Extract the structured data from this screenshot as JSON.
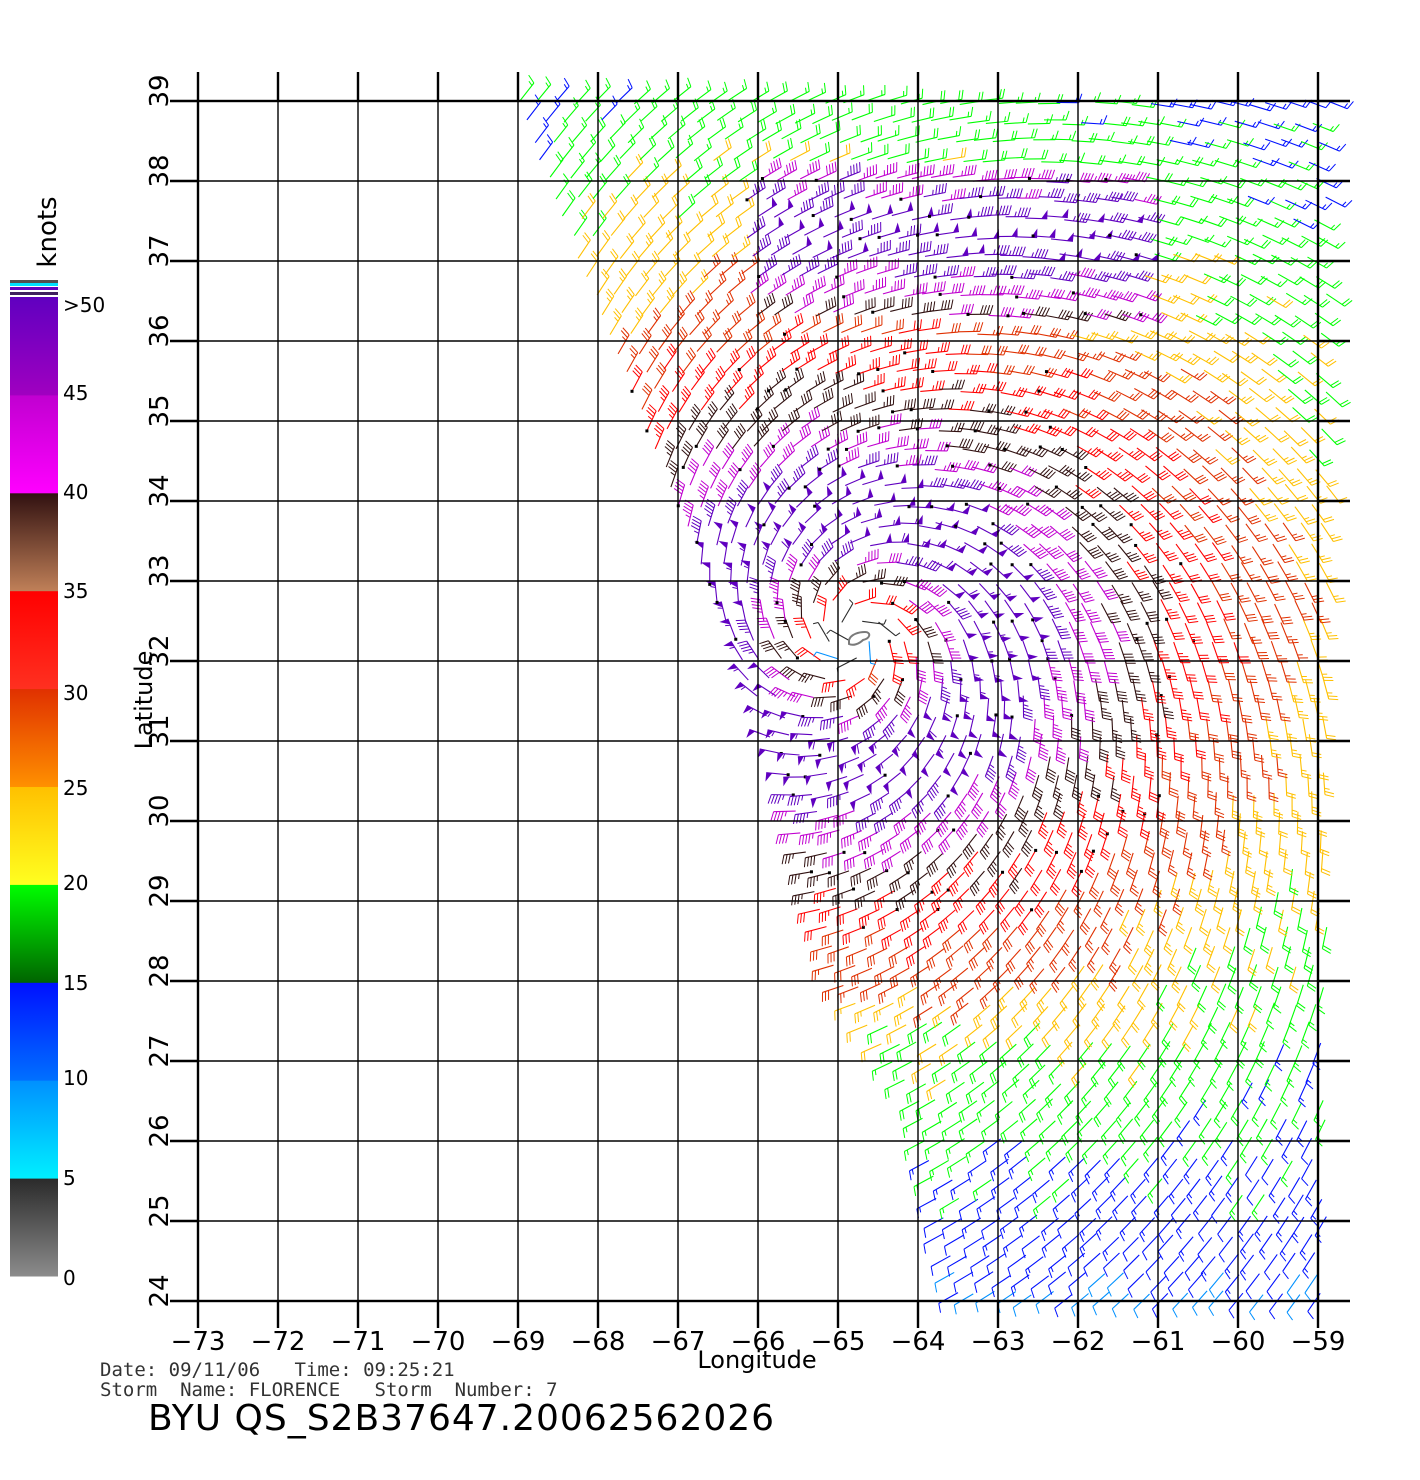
{
  "colorbar": {
    "unit_label": "knots",
    "tick_labels": [
      ">50",
      "45",
      "40",
      "35",
      "30",
      "25",
      "20",
      "15",
      "10",
      "5",
      "0"
    ],
    "segments": [
      {
        "from": 0,
        "to": 5,
        "colors": [
          "#8c8c8c",
          "#2a2a2a"
        ]
      },
      {
        "from": 5,
        "to": 10,
        "colors": [
          "#00f0ff",
          "#0090ff"
        ]
      },
      {
        "from": 10,
        "to": 15,
        "colors": [
          "#0070ff",
          "#0010ff"
        ]
      },
      {
        "from": 15,
        "to": 20,
        "colors": [
          "#006400",
          "#00ff00"
        ]
      },
      {
        "from": 20,
        "to": 25,
        "colors": [
          "#ffff20",
          "#ffc000"
        ]
      },
      {
        "from": 25,
        "to": 30,
        "colors": [
          "#ff9000",
          "#e03000"
        ]
      },
      {
        "from": 30,
        "to": 35,
        "colors": [
          "#ff3020",
          "#ff0000"
        ]
      },
      {
        "from": 35,
        "to": 40,
        "colors": [
          "#c08058",
          "#301010"
        ]
      },
      {
        "from": 40,
        "to": 45,
        "colors": [
          "#ff00ff",
          "#c000d0"
        ]
      },
      {
        "from": 45,
        "to": 50,
        "colors": [
          "#a000c0",
          "#6000c0"
        ]
      }
    ]
  },
  "map": {
    "lon_range": [
      -73,
      -59
    ],
    "lat_range": [
      24,
      39
    ],
    "lon_ticks": [
      "−73",
      "−72",
      "−71",
      "−70",
      "−69",
      "−68",
      "−67",
      "−66",
      "−65",
      "−64",
      "−63",
      "−62",
      "−61",
      "−60",
      "−59"
    ],
    "lat_ticks": [
      "24",
      "25",
      "26",
      "27",
      "28",
      "29",
      "30",
      "31",
      "32",
      "33",
      "34",
      "35",
      "36",
      "37",
      "38",
      "39"
    ],
    "xlabel": "Longitude",
    "ylabel": "Latitude",
    "storm_center": {
      "lon": -64.8,
      "lat": 32.3
    },
    "swath_west_edge": [
      [
        -69.0,
        39.0
      ],
      [
        -66.0,
        31.5
      ],
      [
        -65.6,
        30.5
      ],
      [
        -65.0,
        28.0
      ],
      [
        -64.0,
        26.5
      ],
      [
        -63.5,
        24.0
      ]
    ]
  },
  "info": {
    "date_line": "Date: 09/11/06   Time: 09:25:21",
    "storm_line": "Storm  Name: FLORENCE   Storm  Number: 7",
    "product_id": "BYU  QS_S2B37647.20062562026"
  }
}
